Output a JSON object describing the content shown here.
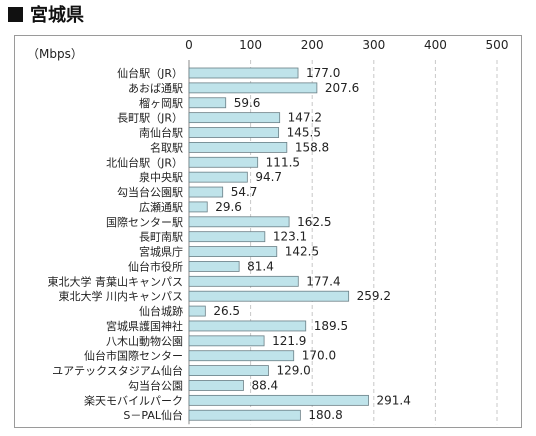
{
  "header": {
    "title": "宮城県"
  },
  "chart_data": {
    "type": "bar",
    "orientation": "horizontal",
    "unit_label": "（Mbps）",
    "xlim": [
      0,
      500
    ],
    "x_ticks": [
      0,
      100,
      200,
      300,
      400,
      500
    ],
    "gridlines": true,
    "bar_color": "#bfe3ea",
    "bar_border_color": "#6a7f86",
    "categories": [
      "仙台駅（JR）",
      "あおば通駅",
      "榴ヶ岡駅",
      "長町駅（JR）",
      "南仙台駅",
      "名取駅",
      "北仙台駅（JR）",
      "泉中央駅",
      "勾当台公園駅",
      "広瀬通駅",
      "国際センター駅",
      "長町南駅",
      "宮城県庁",
      "仙台市役所",
      "東北大学 青葉山キャンパス",
      "東北大学 川内キャンパス",
      "仙台城跡",
      "宮城県護国神社",
      "八木山動物公園",
      "仙台市国際センター",
      "ユアテックスタジアム仙台",
      "勾当台公園",
      "楽天モバイルパーク",
      "S－PAL仙台"
    ],
    "values": [
      177.0,
      207.6,
      59.6,
      147.2,
      145.5,
      158.8,
      111.5,
      94.7,
      54.7,
      29.6,
      162.5,
      123.1,
      142.5,
      81.4,
      177.4,
      259.2,
      26.5,
      189.5,
      121.9,
      170.0,
      129.0,
      88.4,
      291.4,
      180.8
    ],
    "value_labels": [
      "177.0",
      "207.6",
      "59.6",
      "147.2",
      "145.5",
      "158.8",
      "111.5",
      "94.7",
      "54.7",
      "29.6",
      "162.5",
      "123.1",
      "142.5",
      "81.4",
      "177.4",
      "259.2",
      "26.5",
      "189.5",
      "121.9",
      "170.0",
      "129.0",
      "88.4",
      "291.4",
      "180.8"
    ]
  }
}
